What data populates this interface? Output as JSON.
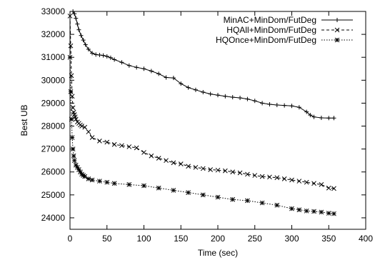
{
  "chart_data": {
    "type": "line",
    "title": "",
    "xlabel": "Time (sec)",
    "ylabel": "Best UB",
    "xlim": [
      0,
      400
    ],
    "ylim": [
      23500,
      33000
    ],
    "xticks": [
      0,
      50,
      100,
      150,
      200,
      250,
      300,
      350,
      400
    ],
    "yticks": [
      24000,
      25000,
      26000,
      27000,
      28000,
      29000,
      30000,
      31000,
      32000,
      33000
    ],
    "grid": false,
    "legend_position": "top-right",
    "series": [
      {
        "name": "MinAC+MinDom/FutDeg",
        "marker": "plus",
        "dash": "solid",
        "x": [
          4,
          6,
          8,
          10,
          12,
          15,
          18,
          21,
          25,
          30,
          35,
          40,
          45,
          50,
          55,
          60,
          70,
          80,
          90,
          100,
          110,
          120,
          130,
          140,
          150,
          160,
          170,
          180,
          190,
          200,
          210,
          220,
          230,
          240,
          250,
          260,
          270,
          280,
          290,
          300,
          310,
          320,
          325,
          330,
          340,
          350,
          357
        ],
        "y": [
          33000,
          32900,
          32700,
          32450,
          32200,
          31950,
          31750,
          31550,
          31350,
          31180,
          31120,
          31100,
          31080,
          31040,
          30980,
          30900,
          30780,
          30640,
          30560,
          30500,
          30400,
          30280,
          30120,
          30100,
          29850,
          29680,
          29580,
          29480,
          29400,
          29350,
          29300,
          29260,
          29230,
          29180,
          29100,
          29000,
          28950,
          28920,
          28900,
          28880,
          28820,
          28620,
          28480,
          28400,
          28360,
          28350,
          28350
        ]
      },
      {
        "name": "HQAll+MinDom/FutDeg",
        "marker": "x",
        "dash": "dashed",
        "x": [
          0,
          1,
          2,
          3,
          4,
          5,
          6,
          7,
          8,
          10,
          12,
          14,
          16,
          20,
          25,
          30,
          40,
          50,
          60,
          70,
          80,
          90,
          100,
          110,
          120,
          130,
          140,
          150,
          160,
          170,
          180,
          190,
          200,
          210,
          220,
          230,
          240,
          250,
          260,
          270,
          280,
          290,
          300,
          310,
          320,
          330,
          340,
          350,
          357
        ],
        "y": [
          32800,
          31500,
          30200,
          29300,
          28800,
          28600,
          28500,
          28400,
          28300,
          28180,
          28120,
          28050,
          28000,
          27950,
          27750,
          27500,
          27350,
          27300,
          27200,
          27150,
          27100,
          27050,
          26850,
          26700,
          26600,
          26500,
          26400,
          26350,
          26250,
          26200,
          26150,
          26100,
          26080,
          26050,
          26000,
          25960,
          25900,
          25850,
          25800,
          25780,
          25750,
          25700,
          25650,
          25600,
          25550,
          25500,
          25450,
          25300,
          25280
        ]
      },
      {
        "name": "HQOnce+MinDom/FutDeg",
        "marker": "asterisk",
        "dash": "dotted",
        "x": [
          0,
          1,
          2,
          3,
          4,
          5,
          6,
          8,
          10,
          12,
          14,
          16,
          18,
          20,
          25,
          30,
          40,
          50,
          60,
          80,
          100,
          120,
          140,
          160,
          180,
          200,
          220,
          240,
          260,
          280,
          300,
          310,
          320,
          330,
          340,
          350,
          357
        ],
        "y": [
          31000,
          29500,
          28300,
          27500,
          27000,
          26700,
          26500,
          26300,
          26200,
          26100,
          26000,
          25900,
          25850,
          25800,
          25700,
          25650,
          25600,
          25550,
          25500,
          25450,
          25400,
          25300,
          25200,
          25100,
          25000,
          24900,
          24800,
          24750,
          24650,
          24550,
          24400,
          24350,
          24300,
          24280,
          24250,
          24200,
          24180
        ]
      }
    ]
  }
}
